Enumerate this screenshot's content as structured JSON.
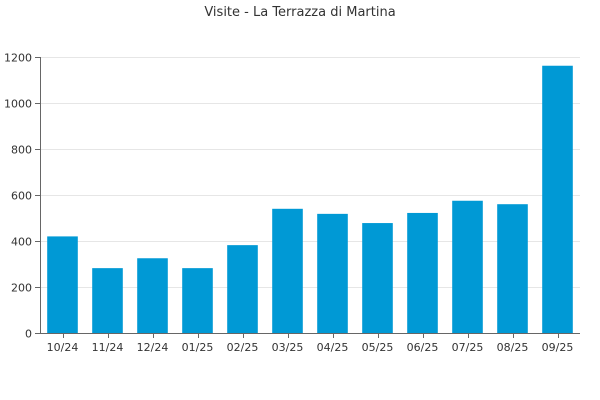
{
  "chart_data": {
    "type": "bar",
    "title": "Visite - La Terrazza di Martina",
    "xlabel": "",
    "ylabel": "",
    "categories": [
      "10/24",
      "11/24",
      "12/24",
      "01/25",
      "02/25",
      "03/25",
      "04/25",
      "05/25",
      "06/25",
      "07/25",
      "08/25",
      "09/25"
    ],
    "series": [
      {
        "values": [
          420,
          282,
          325,
          282,
          382,
          540,
          518,
          478,
          522,
          575,
          560,
          1162
        ]
      }
    ],
    "ylim": [
      0,
      1200
    ],
    "yticks": [
      0,
      200,
      400,
      600,
      800,
      1000,
      1200
    ],
    "grid": true,
    "legend": "none",
    "colors": {
      "bar": "#0099d5",
      "grid": "#e6e6e6",
      "axis": "#666666",
      "text": "#333333"
    }
  }
}
